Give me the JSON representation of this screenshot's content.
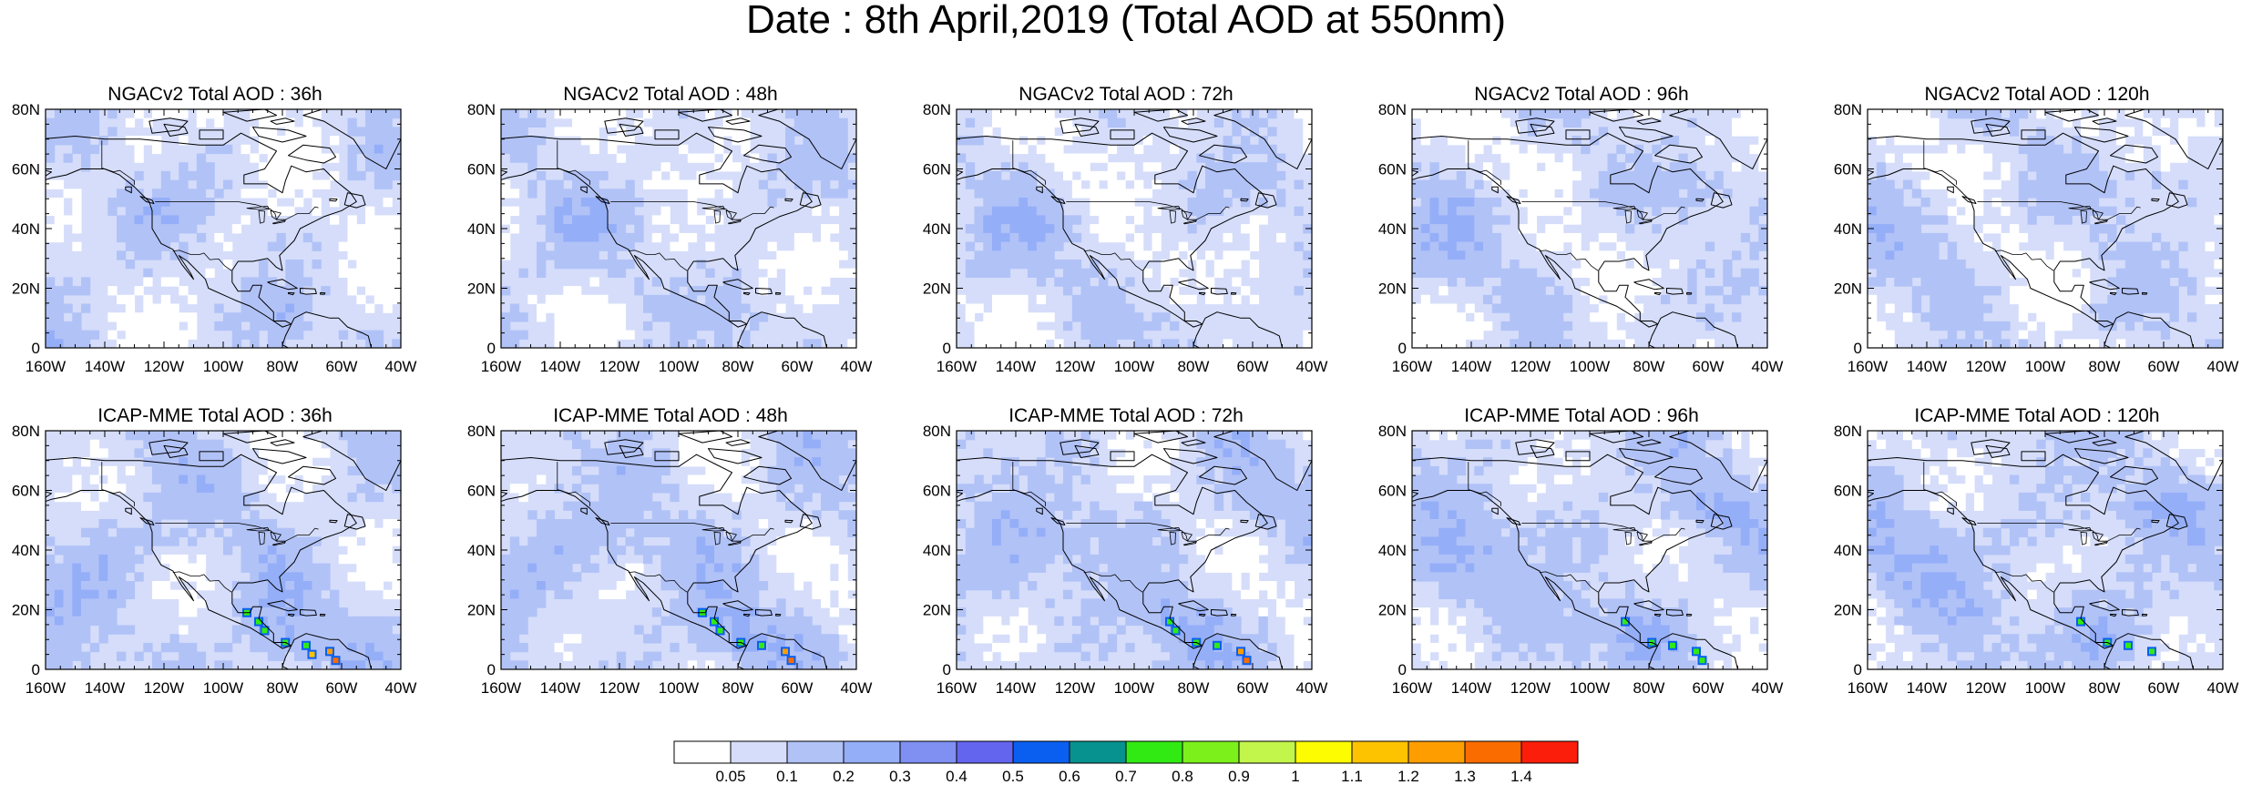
{
  "title": "Date : 8th April,2019 (Total AOD at 550nm)",
  "lat_ticks": [
    "0",
    "20N",
    "40N",
    "60N",
    "80N"
  ],
  "lon_ticks": [
    "160W",
    "140W",
    "120W",
    "100W",
    "80W",
    "60W",
    "40W"
  ],
  "panels": [
    {
      "title": "NGACv2 Total AOD : 36h"
    },
    {
      "title": "NGACv2 Total AOD : 48h"
    },
    {
      "title": "NGACv2 Total AOD : 72h"
    },
    {
      "title": "NGACv2 Total AOD : 96h"
    },
    {
      "title": "NGACv2 Total AOD : 120h"
    },
    {
      "title": "ICAP-MME Total AOD : 36h"
    },
    {
      "title": "ICAP-MME Total AOD : 48h"
    },
    {
      "title": "ICAP-MME Total AOD : 72h"
    },
    {
      "title": "ICAP-MME Total AOD : 96h"
    },
    {
      "title": "ICAP-MME Total AOD : 120h"
    }
  ],
  "colorbar": {
    "labels": [
      "0.05",
      "0.1",
      "0.2",
      "0.3",
      "0.4",
      "0.5",
      "0.6",
      "0.7",
      "0.8",
      "0.9",
      "1",
      "1.1",
      "1.2",
      "1.3",
      "1.4"
    ],
    "colors": [
      "#ffffff",
      "#d5ddfa",
      "#b1c2f7",
      "#95aef8",
      "#7f90f2",
      "#6465ef",
      "#0a5ff0",
      "#07928f",
      "#31ea14",
      "#7cf01b",
      "#c2f64a",
      "#fefc00",
      "#fec300",
      "#fd9d00",
      "#fb6c00",
      "#fa1e0b"
    ]
  }
}
